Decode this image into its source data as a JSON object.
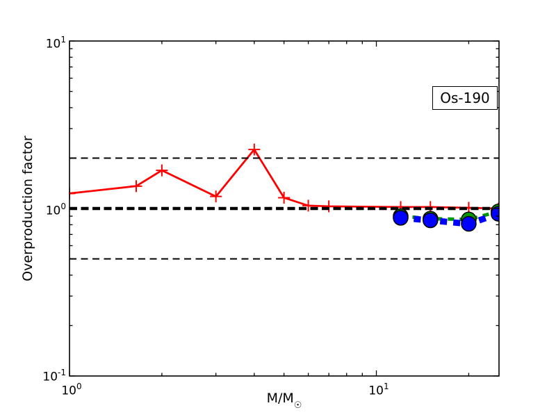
{
  "chart_data": {
    "type": "line",
    "title": "",
    "xlabel": "M/M",
    "xlabel_subscript": "☉",
    "ylabel": "Overproduction factor",
    "annotation": "Os-190",
    "x_scale": "log",
    "y_scale": "log",
    "xlim": [
      1.0,
      25.1
    ],
    "ylim": [
      0.1,
      10.0
    ],
    "grid": false,
    "legend": "none",
    "x_tick_labels": [
      {
        "base": "10",
        "exp": "0",
        "value": 1
      },
      {
        "base": "10",
        "exp": "1",
        "value": 10
      }
    ],
    "y_tick_labels": [
      {
        "base": "10",
        "exp": "1",
        "value": 10
      },
      {
        "base": "10",
        "exp": "0",
        "value": 1
      },
      {
        "base": "10",
        "exp": "-1",
        "value": 0.1
      }
    ],
    "x_minor_ticks": [
      2,
      3,
      4,
      5,
      6,
      7,
      8,
      9,
      20
    ],
    "y_minor_ticks": [
      0.2,
      0.3,
      0.4,
      0.5,
      0.6,
      0.7,
      0.8,
      0.9,
      2,
      3,
      4,
      5,
      6,
      7,
      8,
      9
    ],
    "reference_lines": [
      {
        "y": 2.0,
        "color": "#000000",
        "width": 2.0,
        "dash": [
          10,
          6.5
        ],
        "z": 2
      },
      {
        "y": 1.0,
        "color": "#000000",
        "width": 4.6,
        "dash": [
          11,
          5.5
        ],
        "z": 2
      },
      {
        "y": 0.5,
        "color": "#000000",
        "width": 2.0,
        "dash": [
          10,
          6.5
        ],
        "z": 2
      }
    ],
    "series": [
      {
        "name": "red-solid-plus",
        "color": "#ff0000",
        "width": 2.8,
        "dash": null,
        "marker": "plus",
        "marker_size": 17,
        "z": 1,
        "x": [
          1.0,
          1.65,
          2.0,
          3.0,
          4.0,
          5.0,
          6.0,
          7.0,
          12.0,
          15.0,
          20.0,
          25.0
        ],
        "y": [
          1.23,
          1.36,
          1.69,
          1.18,
          2.25,
          1.16,
          1.04,
          1.03,
          1.02,
          1.02,
          1.01,
          1.0
        ]
      },
      {
        "name": "green-dashed-circle",
        "color": "#009900",
        "width": 5.0,
        "dash": [
          9,
          8
        ],
        "marker": "circle",
        "marker_size": 21,
        "z": 3,
        "x": [
          12.0,
          15.0,
          20.0,
          25.0
        ],
        "y": [
          0.9,
          0.87,
          0.86,
          0.96
        ]
      },
      {
        "name": "blue-dashed-circle",
        "color": "#0000ff",
        "width": 9.0,
        "dash": [
          10,
          9
        ],
        "marker": "circle",
        "marker_size": 21,
        "z": 4,
        "x": [
          12.0,
          15.0,
          20.0,
          25.0
        ],
        "y": [
          0.88,
          0.85,
          0.81,
          0.93
        ]
      }
    ],
    "colors": {
      "axes": "#000000",
      "background": "#ffffff"
    }
  }
}
